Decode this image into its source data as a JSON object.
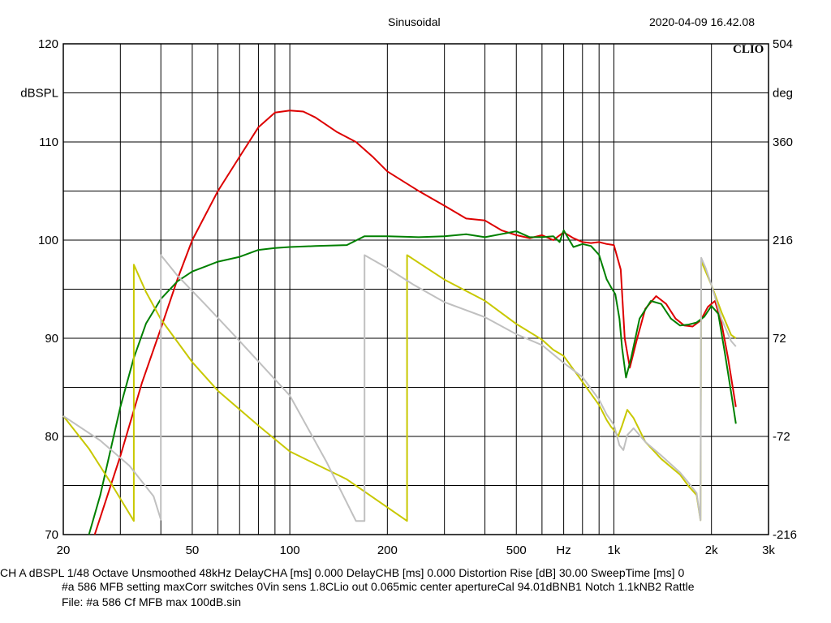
{
  "header": {
    "title": "Sinusoidal",
    "datetime": "2020-04-09 16.42.08",
    "logo": "CLIO"
  },
  "chart_data": {
    "type": "line",
    "title": "Sinusoidal",
    "x_scale": "log",
    "xlim": [
      20,
      3000
    ],
    "ylim": [
      70,
      120
    ],
    "y2lim": [
      -216,
      504
    ],
    "grid": true,
    "x_ticks": [
      {
        "value": 20,
        "label": "20"
      },
      {
        "value": 50,
        "label": "50"
      },
      {
        "value": 100,
        "label": "100"
      },
      {
        "value": 200,
        "label": "200"
      },
      {
        "value": 500,
        "label": "500"
      },
      {
        "value": 700,
        "label": "Hz"
      },
      {
        "value": 1000,
        "label": "1k"
      },
      {
        "value": 2000,
        "label": "2k"
      },
      {
        "value": 3000,
        "label": "3k"
      }
    ],
    "y_left_ticks": [
      {
        "value": 120,
        "label": "120"
      },
      {
        "value": 115,
        "label": "dBSPL"
      },
      {
        "value": 110,
        "label": "110"
      },
      {
        "value": 100,
        "label": "100"
      },
      {
        "value": 90,
        "label": "90"
      },
      {
        "value": 80,
        "label": "80"
      },
      {
        "value": 70,
        "label": "70"
      }
    ],
    "y_right_ticks": [
      {
        "value": 504,
        "label": "504"
      },
      {
        "value": 432,
        "label": "deg"
      },
      {
        "value": 360,
        "label": "360"
      },
      {
        "value": 216,
        "label": "216"
      },
      {
        "value": 72,
        "label": "72"
      },
      {
        "value": -72,
        "label": "-72"
      },
      {
        "value": -216,
        "label": "-216"
      }
    ],
    "series": [
      {
        "color": "#dd0000",
        "axis": "left",
        "points": [
          [
            25,
            70
          ],
          [
            30,
            78
          ],
          [
            35,
            85.5
          ],
          [
            40,
            91
          ],
          [
            45,
            96
          ],
          [
            50,
            100
          ],
          [
            60,
            105
          ],
          [
            70,
            108.5
          ],
          [
            80,
            111.5
          ],
          [
            90,
            113
          ],
          [
            100,
            113.2
          ],
          [
            110,
            113.1
          ],
          [
            120,
            112.5
          ],
          [
            140,
            111
          ],
          [
            160,
            110
          ],
          [
            180,
            108.5
          ],
          [
            200,
            107
          ],
          [
            250,
            105
          ],
          [
            300,
            103.5
          ],
          [
            350,
            102.2
          ],
          [
            400,
            102
          ],
          [
            450,
            101
          ],
          [
            500,
            100.5
          ],
          [
            550,
            100.2
          ],
          [
            600,
            100.5
          ],
          [
            650,
            100
          ],
          [
            700,
            100.8
          ],
          [
            750,
            100.2
          ],
          [
            800,
            99.8
          ],
          [
            850,
            99.7
          ],
          [
            900,
            99.8
          ],
          [
            950,
            99.6
          ],
          [
            1000,
            99.5
          ],
          [
            1050,
            97
          ],
          [
            1080,
            90
          ],
          [
            1120,
            87
          ],
          [
            1180,
            90
          ],
          [
            1250,
            93
          ],
          [
            1350,
            94.3
          ],
          [
            1450,
            93.5
          ],
          [
            1550,
            92
          ],
          [
            1650,
            91.3
          ],
          [
            1750,
            91.2
          ],
          [
            1850,
            91.8
          ],
          [
            1950,
            93.2
          ],
          [
            2050,
            93.8
          ],
          [
            2150,
            91.5
          ],
          [
            2250,
            88
          ],
          [
            2380,
            83
          ]
        ]
      },
      {
        "color": "#008000",
        "axis": "left",
        "points": [
          [
            24,
            70
          ],
          [
            26,
            74
          ],
          [
            30,
            83
          ],
          [
            33,
            88
          ],
          [
            36,
            91.5
          ],
          [
            40,
            94
          ],
          [
            45,
            95.8
          ],
          [
            50,
            96.8
          ],
          [
            60,
            97.8
          ],
          [
            70,
            98.3
          ],
          [
            80,
            99
          ],
          [
            90,
            99.2
          ],
          [
            100,
            99.3
          ],
          [
            120,
            99.4
          ],
          [
            150,
            99.5
          ],
          [
            170,
            100.4
          ],
          [
            200,
            100.4
          ],
          [
            250,
            100.3
          ],
          [
            300,
            100.4
          ],
          [
            350,
            100.6
          ],
          [
            400,
            100.3
          ],
          [
            500,
            100.9
          ],
          [
            550,
            100.3
          ],
          [
            600,
            100.3
          ],
          [
            650,
            100.4
          ],
          [
            680,
            99.8
          ],
          [
            700,
            101
          ],
          [
            720,
            100.3
          ],
          [
            750,
            99.3
          ],
          [
            800,
            99.6
          ],
          [
            850,
            99.4
          ],
          [
            900,
            98.5
          ],
          [
            950,
            96
          ],
          [
            980,
            95.2
          ],
          [
            1010,
            94.5
          ],
          [
            1040,
            92
          ],
          [
            1060,
            89
          ],
          [
            1090,
            86
          ],
          [
            1130,
            88
          ],
          [
            1200,
            92
          ],
          [
            1300,
            93.8
          ],
          [
            1400,
            93.5
          ],
          [
            1500,
            92
          ],
          [
            1600,
            91.3
          ],
          [
            1700,
            91.4
          ],
          [
            1800,
            91.6
          ],
          [
            1900,
            92.2
          ],
          [
            2000,
            93.3
          ],
          [
            2100,
            92.5
          ],
          [
            2200,
            88.5
          ],
          [
            2300,
            84.5
          ],
          [
            2380,
            81.3
          ]
        ]
      },
      {
        "color": "#c8c800",
        "axis": "right",
        "points": [
          [
            20,
            -42
          ],
          [
            24,
            -90
          ],
          [
            28,
            -140
          ],
          [
            33,
            -196
          ],
          [
            33,
            180
          ],
          [
            36,
            140
          ],
          [
            40,
            100
          ],
          [
            50,
            37
          ],
          [
            60,
            -5
          ],
          [
            80,
            -56
          ],
          [
            100,
            -94
          ],
          [
            150,
            -135
          ],
          [
            230,
            -196
          ],
          [
            230,
            194
          ],
          [
            300,
            158
          ],
          [
            400,
            127
          ],
          [
            500,
            93
          ],
          [
            600,
            70
          ],
          [
            650,
            55
          ],
          [
            700,
            46
          ],
          [
            800,
            8
          ],
          [
            900,
            -26
          ],
          [
            950,
            -48
          ],
          [
            980,
            -58
          ],
          [
            1010,
            -65
          ],
          [
            1030,
            -72
          ],
          [
            1060,
            -56
          ],
          [
            1100,
            -33
          ],
          [
            1150,
            -45
          ],
          [
            1250,
            -80
          ],
          [
            1400,
            -105
          ],
          [
            1600,
            -128
          ],
          [
            1700,
            -145
          ],
          [
            1800,
            -158
          ],
          [
            1850,
            -195
          ],
          [
            1860,
            185
          ],
          [
            1920,
            170
          ],
          [
            2000,
            150
          ],
          [
            2150,
            110
          ],
          [
            2300,
            77
          ],
          [
            2380,
            72
          ]
        ]
      },
      {
        "color": "#c0c0c0",
        "axis": "right",
        "points": [
          [
            20,
            -42
          ],
          [
            26,
            -78
          ],
          [
            32,
            -115
          ],
          [
            38,
            -160
          ],
          [
            40,
            -194
          ],
          [
            40,
            194
          ],
          [
            45,
            164
          ],
          [
            55,
            121
          ],
          [
            70,
            68
          ],
          [
            100,
            -12
          ],
          [
            130,
            -110
          ],
          [
            160,
            -196
          ],
          [
            170,
            -196
          ],
          [
            170,
            194
          ],
          [
            200,
            175
          ],
          [
            240,
            151
          ],
          [
            300,
            125
          ],
          [
            400,
            103
          ],
          [
            500,
            78
          ],
          [
            600,
            62
          ],
          [
            700,
            36
          ],
          [
            800,
            15
          ],
          [
            900,
            -18
          ],
          [
            950,
            -40
          ],
          [
            1000,
            -55
          ],
          [
            1040,
            -85
          ],
          [
            1070,
            -92
          ],
          [
            1100,
            -70
          ],
          [
            1150,
            -60
          ],
          [
            1250,
            -80
          ],
          [
            1400,
            -100
          ],
          [
            1600,
            -125
          ],
          [
            1700,
            -140
          ],
          [
            1800,
            -155
          ],
          [
            1850,
            -195
          ],
          [
            1860,
            190
          ],
          [
            1920,
            175
          ],
          [
            2000,
            150
          ],
          [
            2150,
            100
          ],
          [
            2300,
            68
          ],
          [
            2380,
            60
          ]
        ]
      }
    ]
  },
  "info": {
    "line1": "CH A   dBSPL    1/48 Octave   Unsmoothed   48kHz   DelayCHA [ms] 0.000    DelayCHB [ms] 0.000    Distortion Rise [dB] 30.00    SweepTime [ms] 0",
    "line2": "#a 586 MFB setting maxCorr switches 0Vin sens 1.8CLio out 0.065mic center apertureCal 94.01dBNB1 Notch 1.1kNB2 Rattle",
    "line3": "File: #a 586 Cf MFB max 100dB.sin"
  }
}
